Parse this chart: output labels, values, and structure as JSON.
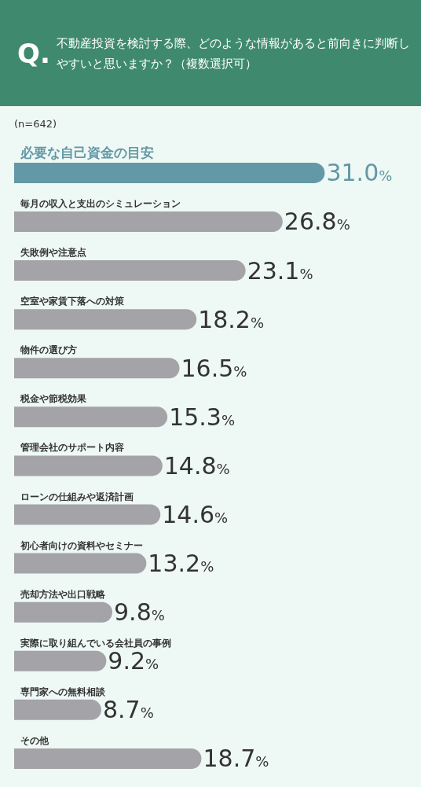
{
  "chart_data": {
    "type": "bar",
    "orientation": "horizontal",
    "title": "Q. 不動産投資を検討する際、どのような情報があると前向きに判断しやすいと思いますか？（複数選択可）",
    "subtitle": "(n=642)",
    "categories": [
      "必要な自己資金の目安",
      "毎月の収入と支出のシミュレーション",
      "失敗例や注意点",
      "空室や家賃下落への対策",
      "物件の選び方",
      "税金や節税効果",
      "管理会社のサポート内容",
      "ローンの仕組みや返済計画",
      "初心者向けの資料やセミナー",
      "売却方法や出口戦略",
      "実際に取り組んでいる会社員の事例",
      "専門家への無料相談",
      "その他"
    ],
    "values": [
      31.0,
      26.8,
      23.1,
      18.2,
      16.5,
      15.3,
      14.8,
      14.6,
      13.2,
      9.8,
      9.2,
      8.7,
      18.7
    ],
    "value_labels": [
      "31.0%",
      "26.8%",
      "23.1%",
      "18.2%",
      "16.5%",
      "15.3%",
      "14.8%",
      "14.6%",
      "13.2%",
      "9.8%",
      "9.2%",
      "8.7%",
      "18.7%"
    ],
    "colors": [
      "#6398a6",
      "#a3a3a8",
      "#a3a3a8",
      "#a3a3a8",
      "#a3a3a8",
      "#a3a3a8",
      "#a3a3a8",
      "#a3a3a8",
      "#a3a3a8",
      "#a3a3a8",
      "#a3a3a8",
      "#a3a3a8",
      "#a3a3a8"
    ]
  }
}
